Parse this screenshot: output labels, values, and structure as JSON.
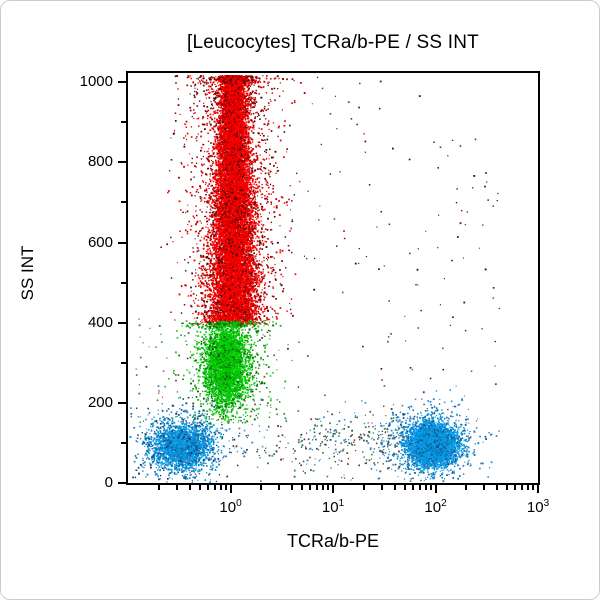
{
  "window": {
    "background": "#ffffff",
    "border_color": "#cbcbcb"
  },
  "chart_data": {
    "type": "scatter",
    "subtype": "flow-cytometry-dot-plot",
    "title": "[Leucocytes] TCRa/b-PE / SS INT",
    "xlabel": "TCRa/b-PE",
    "ylabel": "SS INT",
    "grid": false,
    "legend": false,
    "frame_color": "#000000",
    "background": "#ffffff",
    "x_axis": {
      "scale": "log",
      "decade_min": -1,
      "decade_max": 3,
      "base_label": "10",
      "major_tick_exponents": [
        0,
        1,
        2,
        3
      ],
      "minor_mantissas": [
        2,
        3,
        4,
        5,
        6,
        7,
        8,
        9
      ]
    },
    "y_axis": {
      "scale": "linear",
      "min": 0,
      "max": 1023,
      "major_ticks": [
        0,
        200,
        400,
        600,
        800,
        1000
      ],
      "minor_ticks": [
        100,
        300,
        500,
        700,
        900
      ]
    },
    "populations": [
      {
        "name": "high-ss-sparse-noise",
        "kind": "uniform",
        "render_count": 115,
        "x_log_min": 0.55,
        "x_log_max": 2.65,
        "ss_min": 240,
        "ss_max": 1015,
        "approx_center": {
          "x": 40,
          "ss": 620
        },
        "palette": [
          "#5a0a0a",
          "#7c1616",
          "#301010",
          "#141414",
          "#8c3a3a",
          "#b04040"
        ]
      },
      {
        "name": "sparse-left-noise",
        "kind": "uniform",
        "render_count": 70,
        "x_log_min": -0.95,
        "x_log_max": 0.45,
        "ss_min": 120,
        "ss_max": 430,
        "approx_center": {
          "x": 0.55,
          "ss": 270
        },
        "palette": [
          "#8a8a8a",
          "#2e8a2e",
          "#8a4a4a",
          "#4a6a8a"
        ]
      },
      {
        "name": "low-ss-bridge-scatter",
        "kind": "strip",
        "render_count": 380,
        "x_log_min": -0.2,
        "x_log_max": 1.74,
        "bias_exponent": 0.55,
        "ss_mean": 105,
        "ss_sigma": 45,
        "approx_center": {
          "x": 10,
          "ss": 105
        },
        "palette": [
          "#3a9ccc",
          "#2e86b8",
          "#27685e",
          "#444444",
          "#286428",
          "#7a3030"
        ]
      },
      {
        "name": "granulocytes-red",
        "kind": "column",
        "render_count": 15000,
        "x_log_mean": 0.02,
        "x_log_sigma_top": 0.05,
        "x_log_sigma_bottom": 0.13,
        "ss_min": 397,
        "ss_max": 1060,
        "approx_center": {
          "x": 1.05,
          "ss": 720
        },
        "palette": [
          "#ff0000",
          "#ff0000",
          "#ff0000",
          "#ff0000",
          "#f40000",
          "#df0000",
          "#b80000"
        ],
        "halo": {
          "count": 2300,
          "x_log_sigma": 0.23,
          "palette": [
            "#ff0000",
            "#e00000",
            "#a00000",
            "#700000",
            "#3a0a0a"
          ]
        }
      },
      {
        "name": "monocytes-green",
        "kind": "gauss",
        "render_count": 3600,
        "x_log_mean": -0.05,
        "x_log_sigma": 0.1,
        "ss_mean": 298,
        "ss_sigma": 52,
        "ss_clip_min": 150,
        "ss_clip_max": 405,
        "approx_center": {
          "x": 0.9,
          "ss": 300
        },
        "palette": [
          "#00dc00",
          "#00dc00",
          "#00ce00",
          "#00b800",
          "#0f9f0f"
        ],
        "halo": {
          "count": 900,
          "x_log_sigma": 0.22,
          "ss_sigma": 95,
          "palette": [
            "#00cc00",
            "#22bb22",
            "#118811",
            "#0a5a0a"
          ]
        }
      },
      {
        "name": "lymphocytes-tcr-negative-blue",
        "kind": "gauss",
        "render_count": 2400,
        "x_log_mean": -0.48,
        "x_log_sigma": 0.145,
        "ss_mean": 95,
        "ss_sigma": 28,
        "approx_center": {
          "x": 0.33,
          "ss": 95
        },
        "palette": [
          "#00a2ec",
          "#00a2ec",
          "#0096de",
          "#1e8cd2",
          "#0b6cb4"
        ],
        "halo": {
          "count": 550,
          "x_log_sigma": 0.26,
          "ss_sigma": 55,
          "palette": [
            "#2a9ad8",
            "#1b7cc0",
            "#135a96",
            "#0c3c6e"
          ]
        }
      },
      {
        "name": "t-cells-tcr-positive-blue",
        "kind": "gauss",
        "render_count": 4300,
        "x_log_mean": 1.96,
        "x_log_sigma": 0.115,
        "ss_mean": 98,
        "ss_sigma": 26,
        "approx_center": {
          "x": 92,
          "ss": 98
        },
        "palette": [
          "#00a2f0",
          "#00a2f0",
          "#00a2f0",
          "#0092dc",
          "#0d7cc4"
        ],
        "halo": {
          "count": 700,
          "x_log_sigma": 0.24,
          "ss_sigma": 52,
          "palette": [
            "#2596d4",
            "#1b74b4",
            "#0f568e"
          ]
        }
      }
    ]
  }
}
